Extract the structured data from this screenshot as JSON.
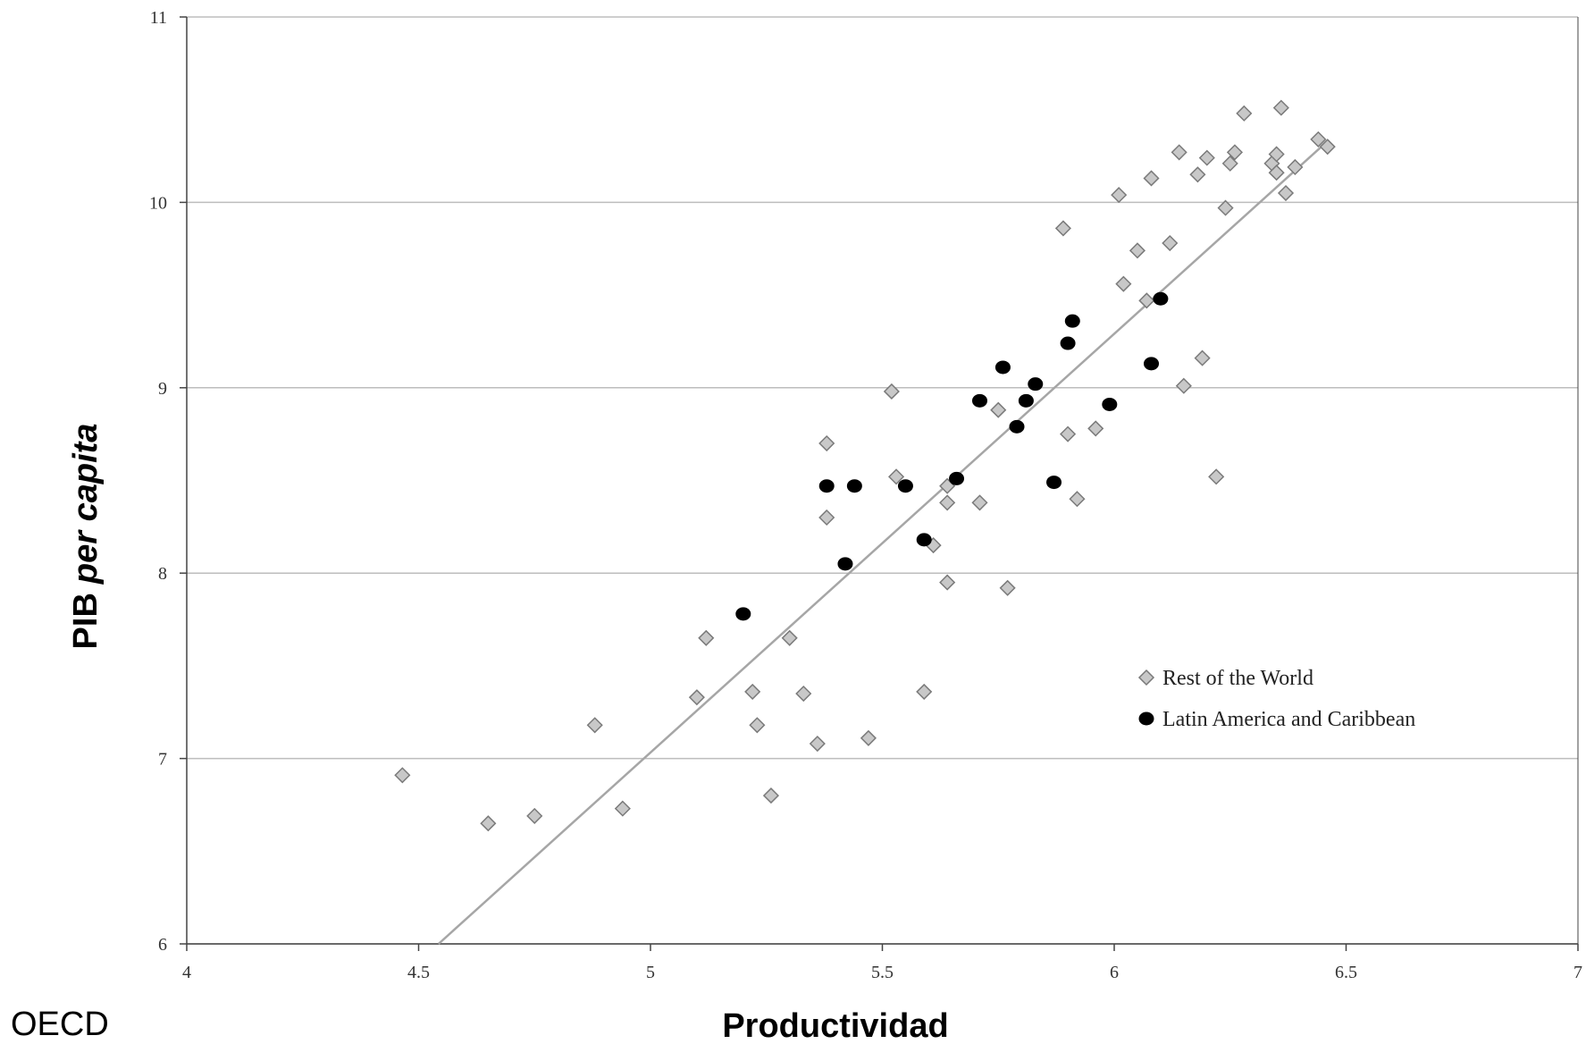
{
  "chart_data": {
    "type": "scatter",
    "y_label_parts": [
      "PIB",
      "per capita"
    ],
    "x_label": "Productividad",
    "source": "OECD",
    "xlim": [
      4,
      7
    ],
    "xticks": [
      4,
      4.5,
      5,
      5.5,
      6,
      6.5,
      7
    ],
    "ylim": [
      6,
      11
    ],
    "yticks": [
      6,
      7,
      8,
      9,
      10,
      11
    ],
    "grid": true,
    "legend": "lower right",
    "series": [
      {
        "name": "Rest of the World",
        "color": "#c8c8c8",
        "marker": "diamond",
        "x": [
          4.465,
          4.65,
          4.75,
          4.88,
          4.94,
          5.1,
          5.12,
          5.22,
          5.23,
          5.26,
          5.3,
          5.33,
          5.36,
          5.38,
          5.38,
          5.47,
          5.52,
          5.53,
          5.59,
          5.61,
          5.64,
          5.64,
          5.64,
          5.71,
          5.75,
          5.77,
          5.89,
          5.9,
          5.92,
          5.96,
          6.01,
          6.02,
          6.05,
          6.07,
          6.08,
          6.12,
          6.14,
          6.15,
          6.18,
          6.19,
          6.2,
          6.22,
          6.24,
          6.25,
          6.26,
          6.28,
          6.34,
          6.35,
          6.35,
          6.36,
          6.37,
          6.39,
          6.44,
          6.46
        ],
        "values": [
          6.91,
          6.65,
          6.69,
          7.18,
          6.73,
          7.33,
          7.65,
          7.36,
          7.18,
          6.8,
          7.65,
          7.35,
          7.08,
          8.7,
          8.3,
          7.11,
          8.98,
          8.52,
          7.36,
          8.15,
          8.47,
          8.38,
          7.95,
          8.38,
          8.88,
          7.92,
          9.86,
          8.75,
          8.4,
          8.78,
          10.04,
          9.56,
          9.74,
          9.47,
          10.13,
          9.78,
          10.27,
          9.01,
          10.15,
          9.16,
          10.24,
          8.52,
          9.97,
          10.21,
          10.27,
          10.48,
          10.21,
          10.26,
          10.16,
          10.51,
          10.05,
          10.19,
          10.34,
          10.3
        ]
      },
      {
        "name": "Latin America and Caribbean",
        "color": "#000000",
        "marker": "circle",
        "x": [
          5.2,
          5.38,
          5.42,
          5.44,
          5.55,
          5.59,
          5.66,
          5.71,
          5.76,
          5.79,
          5.81,
          5.83,
          5.87,
          5.9,
          5.91,
          5.99,
          6.08,
          6.1
        ],
        "values": [
          7.78,
          8.47,
          8.05,
          8.47,
          8.47,
          8.18,
          8.51,
          8.93,
          9.11,
          8.79,
          8.93,
          9.02,
          8.49,
          9.24,
          9.36,
          8.91,
          9.13,
          9.48
        ]
      }
    ],
    "trendline": {
      "color": "#a6a6a6",
      "x": [
        4.543,
        6.46
      ],
      "values": [
        6,
        10.33
      ]
    }
  }
}
